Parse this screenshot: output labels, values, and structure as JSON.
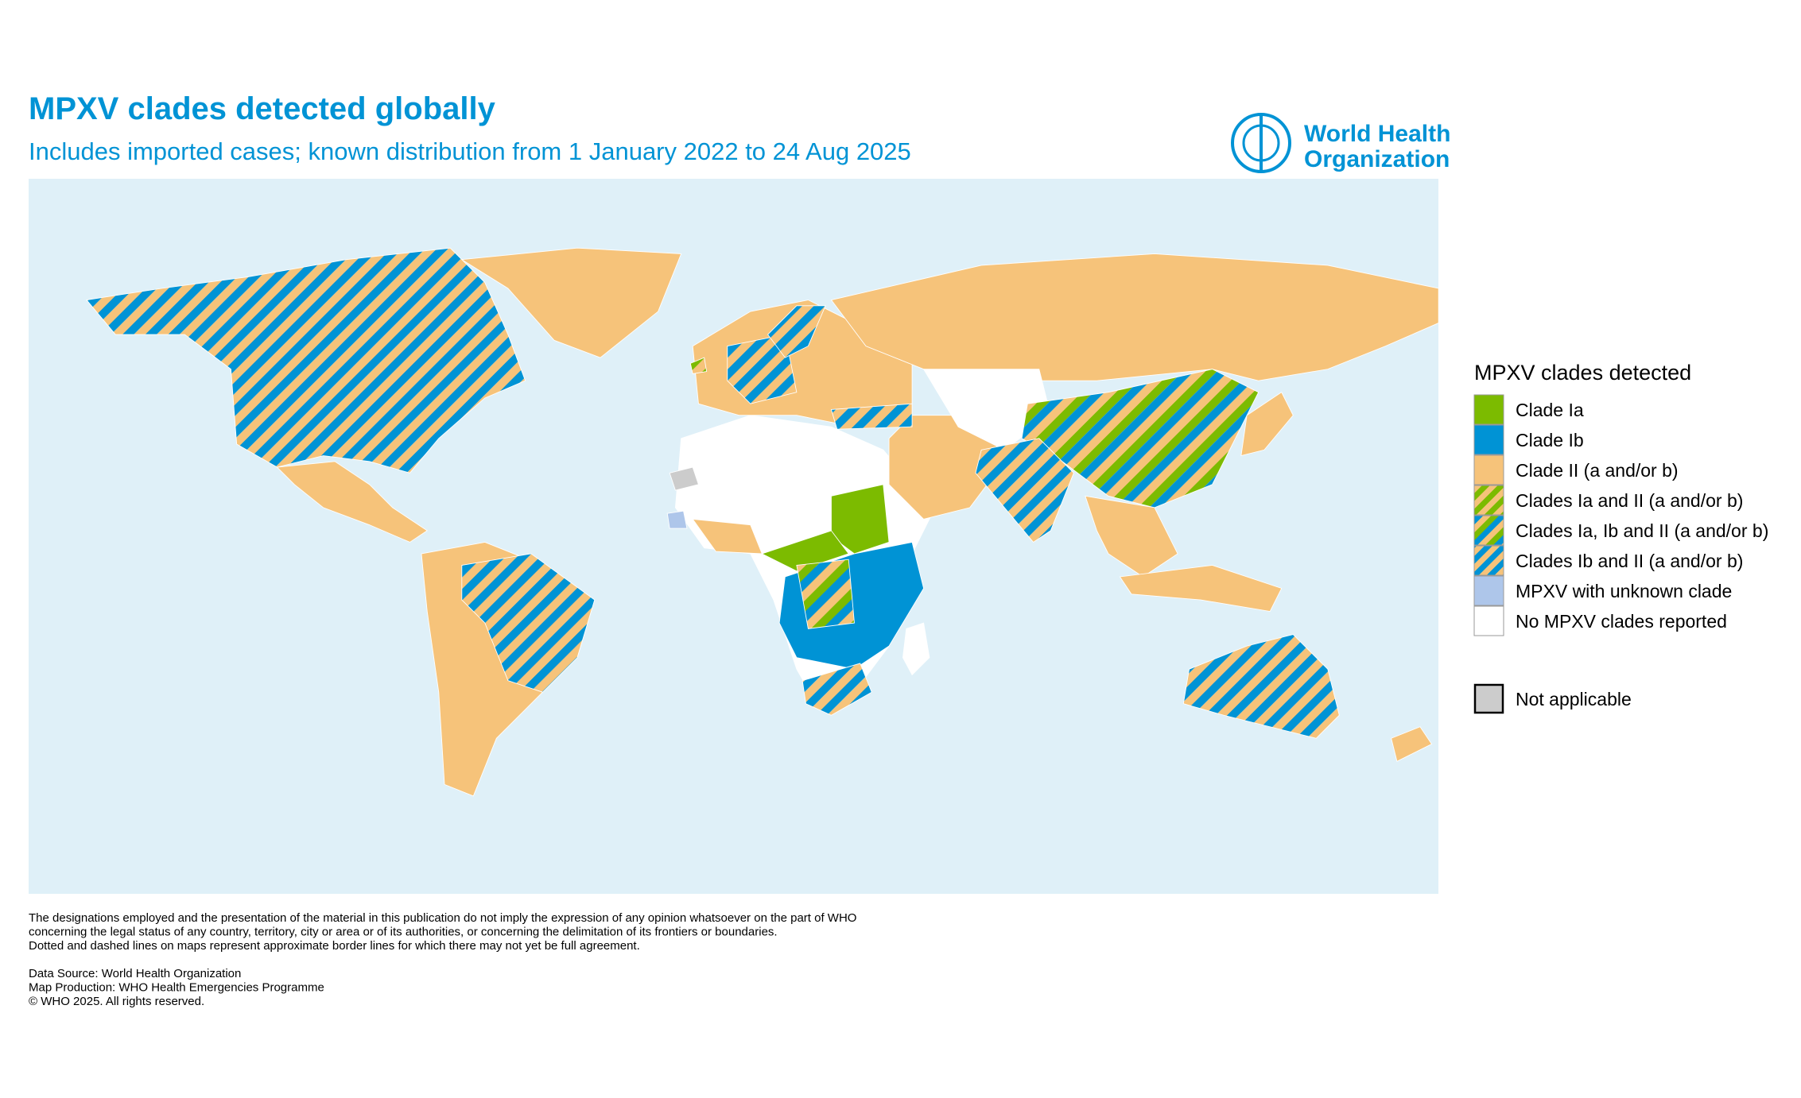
{
  "header": {
    "title": "MPXV clades detected globally",
    "subtitle": "Includes imported cases; known distribution from 1 January 2022 to 24 Aug 2025",
    "logo": [
      "World Health",
      "Organization"
    ]
  },
  "legend": {
    "title": "MPXV clades detected",
    "items": [
      {
        "label": "Clade Ia",
        "colors": [
          "#7cbb00"
        ]
      },
      {
        "label": "Clade Ib",
        "colors": [
          "#0093d5"
        ]
      },
      {
        "label": "Clade II (a and/or b)",
        "colors": [
          "#f6c37a"
        ]
      },
      {
        "label": "Clades Ia and II (a and/or b)",
        "colors": [
          "#7cbb00",
          "#f6c37a"
        ]
      },
      {
        "label": "Clades Ia, Ib and II (a and/or b)",
        "colors": [
          "#7cbb00",
          "#0093d5",
          "#f6c37a"
        ]
      },
      {
        "label": "Clades Ib and II (a and/or b)",
        "colors": [
          "#0093d5",
          "#f6c37a"
        ]
      },
      {
        "label": "MPXV with unknown clade",
        "colors": [
          "#aec6ea"
        ]
      },
      {
        "label": "No MPXV clades reported",
        "colors": [
          "#ffffff"
        ]
      }
    ],
    "not_applicable": {
      "label": "Not applicable",
      "colors": [
        "#cccccc"
      ]
    }
  },
  "footer": {
    "disclaimer": [
      "The designations employed and the presentation of the material in this publication do not imply the expression of any opinion whatsoever on the part of WHO",
      "concerning the legal status of any country, territory, city or area or of its authorities, or concerning the delimitation of its frontiers or boundaries.",
      "Dotted and dashed lines on maps represent approximate border lines for which there may not yet be full agreement."
    ],
    "sources": [
      "Data Source: World Health Organization",
      "Map Production: WHO Health Emergencies Programme",
      "© WHO 2025. All rights reserved."
    ]
  }
}
